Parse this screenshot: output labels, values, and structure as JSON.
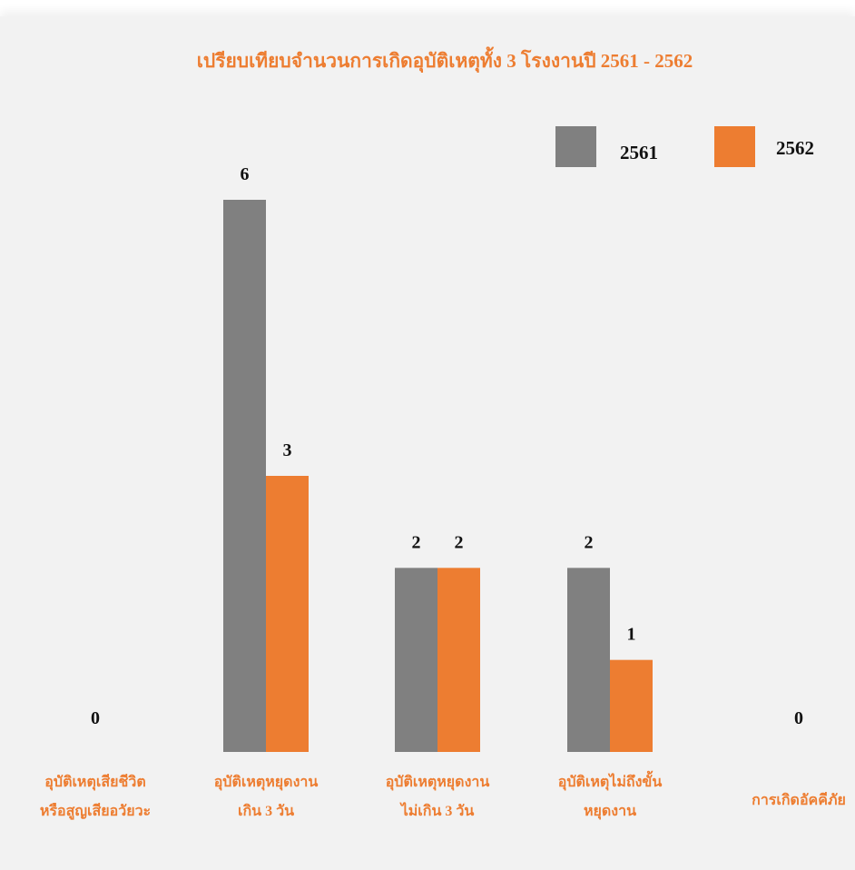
{
  "chart_data": {
    "type": "bar",
    "title": "เปรียบเทียบจำนวนการเกิดอุบัติเหตุทั้ง 3 โรงงานปี 2561 - 2562",
    "categories": [
      [
        "อุบัติเหตุเสียชีวิต",
        "หรือสูญเสียอวัยวะ"
      ],
      [
        "อุบัติเหตุหยุดงาน",
        "เกิน 3 วัน"
      ],
      [
        "อุบัติเหตุหยุดงาน",
        "ไม่เกิน 3 วัน"
      ],
      [
        "อุบัติเหตุไม่ถึงขั้น",
        "หยุดงาน"
      ],
      [
        "การเกิดอัคคีภัย"
      ]
    ],
    "series": [
      {
        "name": "2561",
        "values": [
          0,
          6,
          2,
          2,
          0
        ],
        "color": "#808080"
      },
      {
        "name": "2562",
        "values": [
          null,
          3,
          2,
          1,
          0
        ],
        "color": "#ed7d31"
      }
    ],
    "value_labels": [
      [
        "0",
        "6",
        "2",
        "2",
        null
      ],
      [
        null,
        "3",
        "2",
        "1",
        "0"
      ]
    ],
    "ylim": [
      0,
      6
    ],
    "legend_position": "top-right",
    "grid": false
  }
}
